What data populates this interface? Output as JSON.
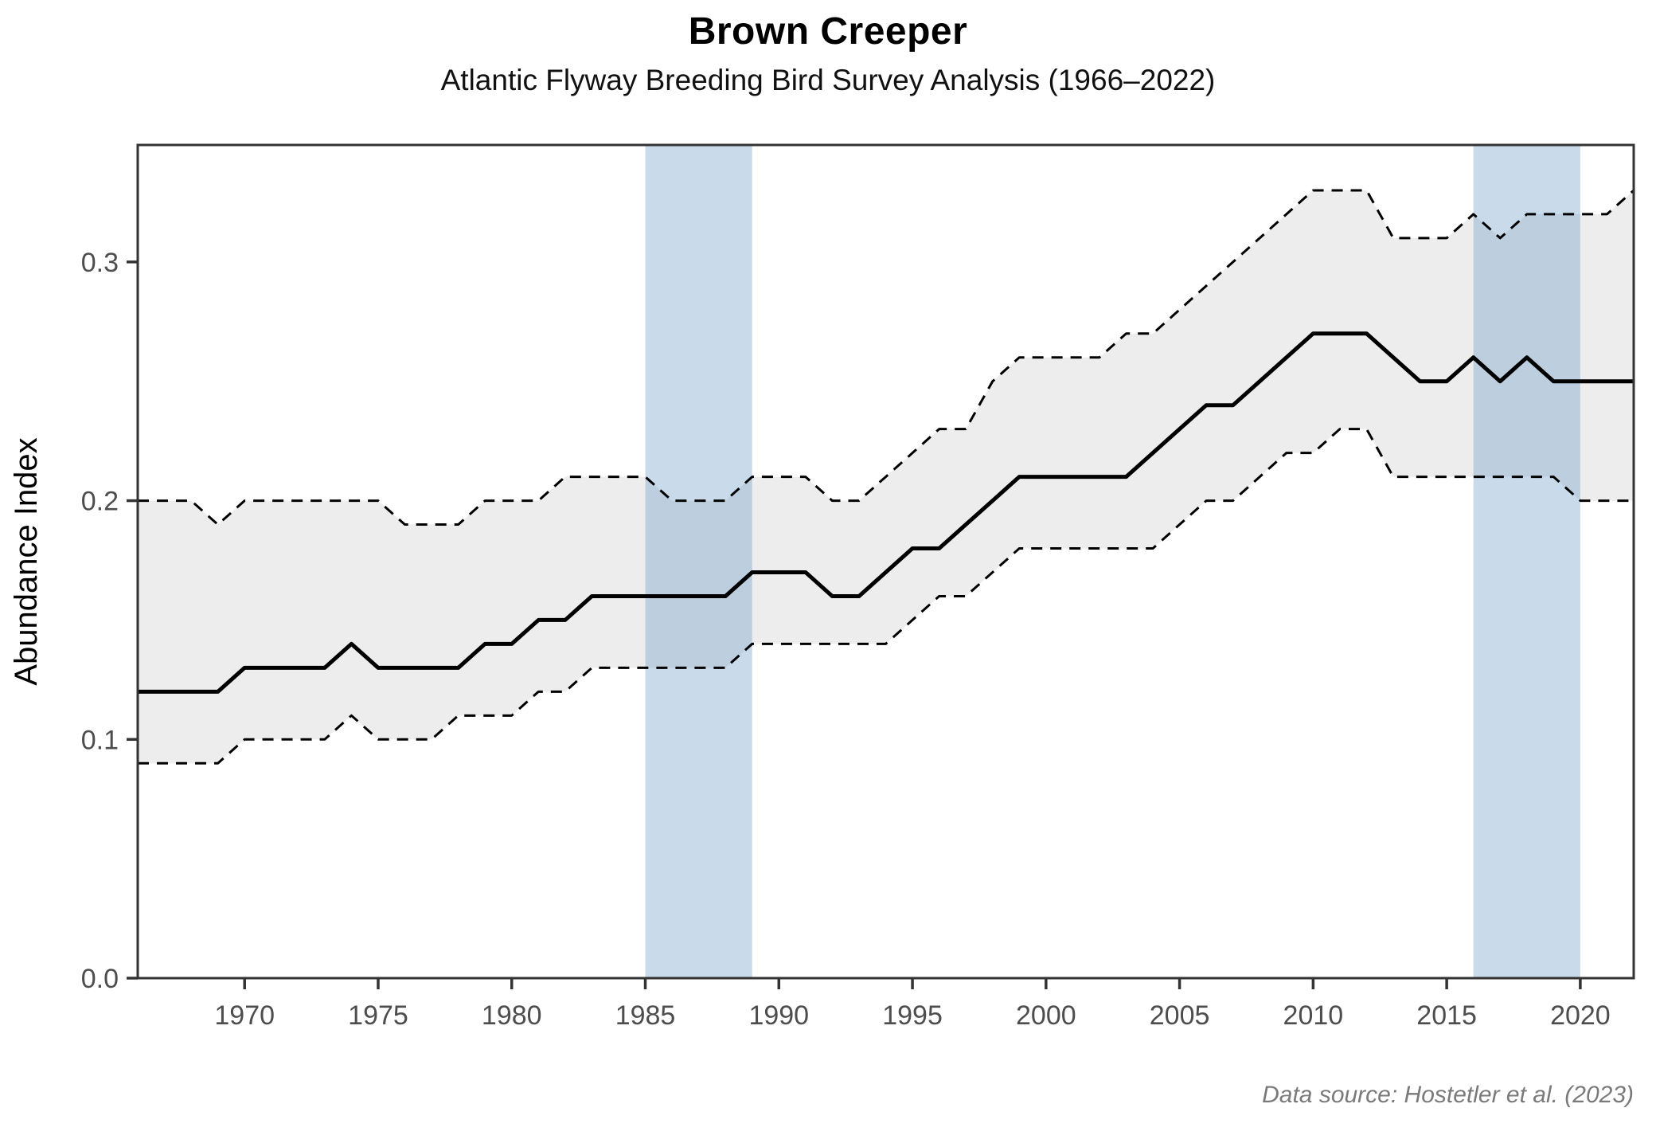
{
  "header": {
    "title": "Brown Creeper",
    "subtitle": "Atlantic Flyway Breeding Bird Survey Analysis (1966–2022)"
  },
  "caption": "Data source: Hostetler et al. (2023)",
  "colors": {
    "index_line": "#000000",
    "ci_line": "#000000",
    "ribbon_fill": "#EDEDED",
    "band_fill": "rgba(99,149,198,0.35)",
    "panel_border": "#333333",
    "tick_mark": "#333333",
    "tick_label": "#4D4D4D",
    "axis_title": "#000000",
    "caption_text": "#7A7A7A"
  },
  "chart_data": {
    "type": "line",
    "title": "Brown Creeper",
    "subtitle": "Atlantic Flyway Breeding Bird Survey Analysis (1966–2022)",
    "xlabel": "",
    "ylabel": "Abundance Index",
    "xlim": [
      1966,
      2022
    ],
    "ylim": [
      0,
      0.349
    ],
    "grid": false,
    "legend": false,
    "x_ticks": [
      1970,
      1975,
      1980,
      1985,
      1990,
      1995,
      2000,
      2005,
      2010,
      2015,
      2020
    ],
    "y_ticks": [
      0.0,
      0.1,
      0.2,
      0.3
    ],
    "y_tick_labels": [
      "0.0",
      "0.1",
      "0.2",
      "0.3"
    ],
    "highlight_bands": [
      {
        "from": 1985,
        "to": 1989
      },
      {
        "from": 2016,
        "to": 2020
      }
    ],
    "x": [
      1966,
      1967,
      1968,
      1969,
      1970,
      1971,
      1972,
      1973,
      1974,
      1975,
      1976,
      1977,
      1978,
      1979,
      1980,
      1981,
      1982,
      1983,
      1984,
      1985,
      1986,
      1987,
      1988,
      1989,
      1990,
      1991,
      1992,
      1993,
      1994,
      1995,
      1996,
      1997,
      1998,
      1999,
      2000,
      2001,
      2002,
      2003,
      2004,
      2005,
      2006,
      2007,
      2008,
      2009,
      2010,
      2011,
      2012,
      2013,
      2014,
      2015,
      2016,
      2017,
      2018,
      2019,
      2020,
      2021,
      2022
    ],
    "series": [
      {
        "name": "Annual abundance index",
        "style": "solid",
        "values": [
          0.12,
          0.12,
          0.12,
          0.12,
          0.13,
          0.13,
          0.13,
          0.13,
          0.14,
          0.13,
          0.13,
          0.13,
          0.13,
          0.14,
          0.14,
          0.15,
          0.15,
          0.16,
          0.16,
          0.16,
          0.16,
          0.16,
          0.16,
          0.17,
          0.17,
          0.17,
          0.16,
          0.16,
          0.17,
          0.18,
          0.18,
          0.19,
          0.2,
          0.21,
          0.21,
          0.21,
          0.21,
          0.21,
          0.22,
          0.23,
          0.24,
          0.24,
          0.25,
          0.26,
          0.27,
          0.27,
          0.27,
          0.26,
          0.25,
          0.25,
          0.26,
          0.25,
          0.26,
          0.25,
          0.25,
          0.25,
          0.25
        ]
      },
      {
        "name": "Lower 95% credible interval",
        "style": "dashed",
        "values": [
          0.09,
          0.09,
          0.09,
          0.09,
          0.1,
          0.1,
          0.1,
          0.1,
          0.11,
          0.1,
          0.1,
          0.1,
          0.11,
          0.11,
          0.11,
          0.12,
          0.12,
          0.13,
          0.13,
          0.13,
          0.13,
          0.13,
          0.13,
          0.14,
          0.14,
          0.14,
          0.14,
          0.14,
          0.14,
          0.15,
          0.16,
          0.16,
          0.17,
          0.18,
          0.18,
          0.18,
          0.18,
          0.18,
          0.18,
          0.19,
          0.2,
          0.2,
          0.21,
          0.22,
          0.22,
          0.23,
          0.23,
          0.21,
          0.21,
          0.21,
          0.21,
          0.21,
          0.21,
          0.21,
          0.2,
          0.2,
          0.2
        ]
      },
      {
        "name": "Upper 95% credible interval",
        "style": "dashed",
        "values": [
          0.2,
          0.2,
          0.2,
          0.19,
          0.2,
          0.2,
          0.2,
          0.2,
          0.2,
          0.2,
          0.19,
          0.19,
          0.19,
          0.2,
          0.2,
          0.2,
          0.21,
          0.21,
          0.21,
          0.21,
          0.2,
          0.2,
          0.2,
          0.21,
          0.21,
          0.21,
          0.2,
          0.2,
          0.21,
          0.22,
          0.23,
          0.23,
          0.25,
          0.26,
          0.26,
          0.26,
          0.26,
          0.27,
          0.27,
          0.28,
          0.29,
          0.3,
          0.31,
          0.32,
          0.33,
          0.33,
          0.33,
          0.31,
          0.31,
          0.31,
          0.32,
          0.31,
          0.32,
          0.32,
          0.32,
          0.32,
          0.33
        ]
      }
    ],
    "ribbon": {
      "lower_series": 1,
      "upper_series": 2
    }
  }
}
